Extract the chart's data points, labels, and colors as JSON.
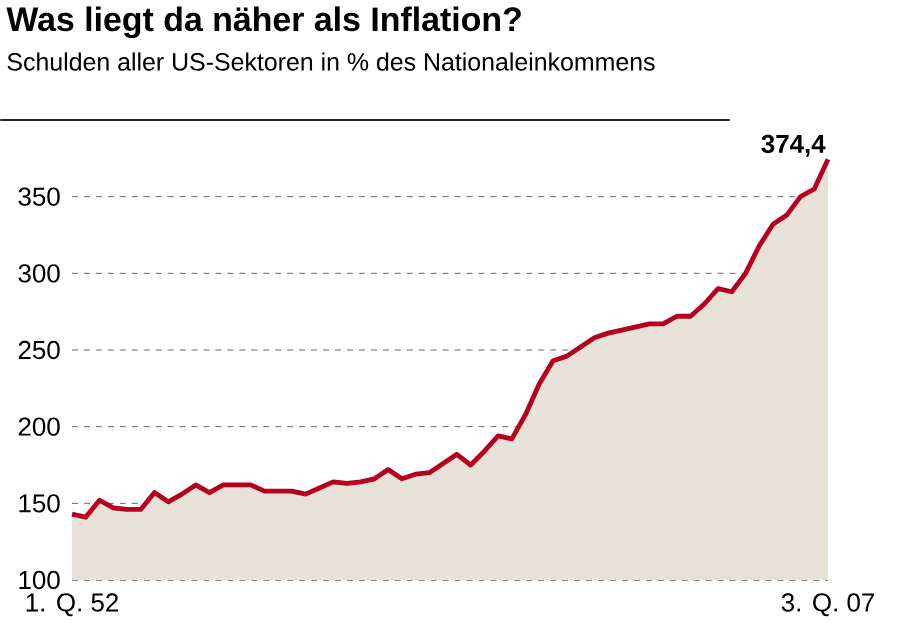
{
  "chart_data": {
    "type": "area",
    "title": "Was liegt da näher als Inflation?",
    "subtitle": "Schulden aller US-Sektoren in % des Nationaleinkommens",
    "categories": [
      "1. Q. 52",
      null,
      null,
      null,
      null,
      null,
      null,
      null,
      null,
      null,
      null,
      null,
      null,
      null,
      null,
      null,
      null,
      null,
      null,
      null,
      null,
      null,
      null,
      null,
      null,
      null,
      null,
      null,
      null,
      null,
      null,
      null,
      null,
      null,
      null,
      null,
      null,
      null,
      null,
      null,
      null,
      null,
      null,
      null,
      null,
      null,
      null,
      null,
      null,
      null,
      null,
      null,
      null,
      null,
      null,
      "3. Q. 07"
    ],
    "series": [
      {
        "color": "#b5001f",
        "values": [
          143,
          141,
          152,
          147,
          146,
          146,
          157,
          151,
          156,
          162,
          157,
          162,
          162,
          162,
          158,
          158,
          158,
          156,
          160,
          164,
          163,
          164,
          166,
          172,
          166,
          169,
          170,
          176,
          182,
          175,
          184,
          194,
          192,
          208,
          228,
          243,
          246,
          252,
          258,
          261,
          263,
          265,
          267,
          267,
          272,
          272,
          280,
          290,
          288,
          300,
          318,
          332,
          338,
          350,
          355,
          374.4
        ]
      }
    ],
    "ylim": [
      100,
      400
    ],
    "yticks": [
      100,
      150,
      200,
      250,
      300,
      350
    ],
    "grid": "y",
    "annotations": [
      {
        "text": "374,4",
        "x": "3. Q. 07",
        "y": 374.4
      }
    ]
  }
}
